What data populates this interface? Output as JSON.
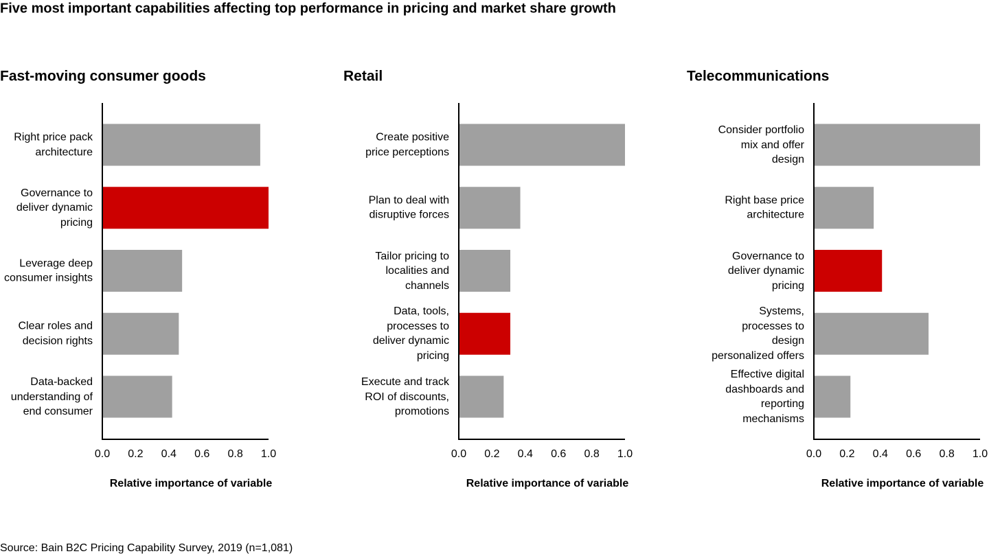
{
  "title": "Five most important capabilities affecting top performance in pricing and market share growth",
  "source": "Source: Bain B2C Pricing Capability Survey, 2019 (n=1,081)",
  "chart_data": [
    {
      "type": "hbar",
      "title": "Fast-moving consumer goods",
      "categories": [
        "Right price pack architecture",
        "Governance to deliver dynamic pricing",
        "Leverage deep consumer insights",
        "Clear roles and decision rights",
        "Data-backed understanding of end consumer"
      ],
      "values": [
        0.95,
        1.0,
        0.48,
        0.46,
        0.42
      ],
      "colors": [
        "#a0a0a0",
        "#cc0000",
        "#a0a0a0",
        "#a0a0a0",
        "#a0a0a0"
      ],
      "xlabel": "Relative importance of variable",
      "xlim": [
        0,
        1
      ],
      "xticks": [
        {
          "value": 0,
          "label": "0.0"
        },
        0.2,
        0.4,
        0.6,
        0.8,
        {
          "value": 1,
          "label": "1.0"
        }
      ]
    },
    {
      "type": "hbar",
      "title": "Retail",
      "categories": [
        "Create positive price perceptions",
        "Plan to deal with disruptive forces",
        "Tailor pricing to localities and channels",
        "Data, tools, processes to deliver dynamic pricing",
        "Execute and track ROI of discounts, promotions"
      ],
      "values": [
        1.0,
        0.37,
        0.31,
        0.31,
        0.27
      ],
      "colors": [
        "#a0a0a0",
        "#a0a0a0",
        "#a0a0a0",
        "#cc0000",
        "#a0a0a0"
      ],
      "xlabel": "Relative importance of variable",
      "xlim": [
        0,
        1
      ],
      "xticks": [
        {
          "value": 0,
          "label": "0.0"
        },
        0.2,
        0.4,
        0.6,
        0.8,
        {
          "value": 1,
          "label": "1.0"
        }
      ]
    },
    {
      "type": "hbar",
      "title": "Telecommunications",
      "categories": [
        "Consider portfolio mix and offer design",
        "Right base price architecture",
        "Governance to deliver dynamic pricing",
        "Systems, processes to design personalized offers",
        "Effective digital dashboards and reporting mechanisms"
      ],
      "values": [
        1.0,
        0.36,
        0.41,
        0.69,
        0.22
      ],
      "colors": [
        "#a0a0a0",
        "#a0a0a0",
        "#cc0000",
        "#a0a0a0",
        "#a0a0a0"
      ],
      "xlabel": "Relative importance of variable",
      "xlim": [
        0,
        1
      ],
      "xticks": [
        {
          "value": 0,
          "label": "0.0"
        },
        0.2,
        0.4,
        0.6,
        0.8,
        {
          "value": 1,
          "label": "1.0"
        }
      ]
    }
  ]
}
